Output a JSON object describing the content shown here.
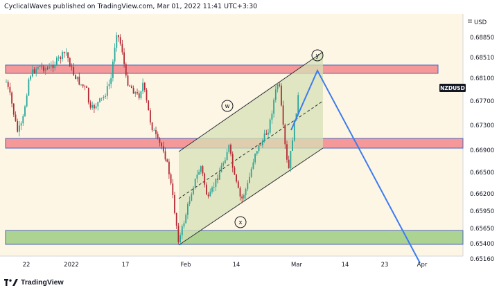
{
  "header": {
    "text": "CyclicalWaves published on TradingView.com, Mar 01, 2022 11:41 UTC+3:30"
  },
  "footer": {
    "logo_text": "TradingView"
  },
  "chart_data": {
    "type": "candlestick",
    "symbol": "NZDUSD",
    "currency": "USD",
    "y_ticks": [
      "0.68850",
      "0.68510",
      "0.68100",
      "0.67700",
      "0.67300",
      "0.66900",
      "0.66500",
      "0.66200",
      "0.65950",
      "0.65650",
      "0.65400",
      "0.65160"
    ],
    "x_ticks": [
      "22",
      "2022",
      "17",
      "Feb",
      "14",
      "Mar",
      "14",
      "23",
      "Apr"
    ],
    "colors": {
      "background": "#fdf6e4",
      "bull": "#26a69a",
      "bear": "#b22833",
      "resistance_zone": "#f3878c",
      "support_zone_fill": "#a9d18e",
      "channel_fill": "#d5e0b6",
      "projection": "#3c7bf0",
      "symbol_badge": "#131722"
    },
    "wave_labels": [
      "w",
      "x",
      "y"
    ],
    "annotations": [
      "ascending-channel",
      "resistance-zone-upper",
      "resistance-zone-middle",
      "support-zone-lower",
      "projection-path"
    ]
  }
}
